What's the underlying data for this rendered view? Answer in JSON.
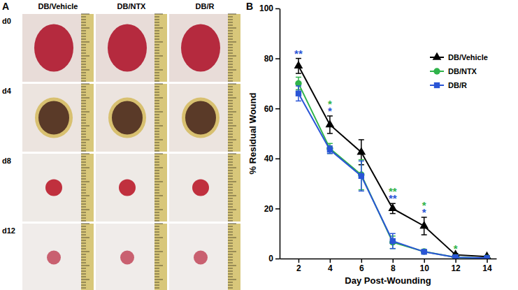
{
  "panel_a": {
    "label": "A",
    "columns": [
      "DB/Vehicle",
      "DB/NTX",
      "DB/R"
    ],
    "rows": [
      "d0",
      "d4",
      "d8",
      "d12"
    ]
  },
  "chart_data": {
    "type": "line",
    "panel_label": "B",
    "x_label": "Day Post-Wounding",
    "y_label": "% Residual Wound",
    "x": [
      2,
      4,
      6,
      8,
      10,
      12,
      14
    ],
    "xlim": [
      0.8,
      14.6
    ],
    "xticks": [
      2,
      4,
      6,
      8,
      10,
      12,
      14
    ],
    "ylim": [
      0,
      100
    ],
    "yticks": [
      0,
      20,
      40,
      60,
      80,
      100
    ],
    "legend": "upper right",
    "series": [
      {
        "name": "DB/Vehicle",
        "color": "#000000",
        "marker": "triangle",
        "line_style": "solid",
        "values": [
          77,
          53.5,
          42.5,
          20,
          13,
          1.5,
          0.8
        ],
        "errors": [
          3,
          3.5,
          5,
          2,
          3.5,
          0.5,
          0.3
        ]
      },
      {
        "name": "DB/NTX",
        "color": "#2fb34a",
        "marker": "circle",
        "line_style": "solid",
        "values": [
          70,
          44,
          33.5,
          6.5,
          2.8,
          0.5,
          0.2
        ],
        "errors": [
          2.5,
          2,
          6,
          2.5,
          0.5,
          0.3,
          0.1
        ]
      },
      {
        "name": "DB/R",
        "color": "#2a55d6",
        "marker": "square",
        "line_style": "solid",
        "values": [
          66,
          43.5,
          33,
          7,
          2.7,
          0.5,
          0.2
        ],
        "errors": [
          3,
          1.5,
          6,
          3,
          0.5,
          0.3,
          0.1
        ]
      }
    ],
    "annotations": [
      {
        "x": 2,
        "text": "**",
        "series": "DB/R"
      },
      {
        "x": 4,
        "text": "*",
        "series": "DB/NTX"
      },
      {
        "x": 4,
        "text": "*",
        "series": "DB/R"
      },
      {
        "x": 8,
        "text": "**",
        "series": "DB/NTX"
      },
      {
        "x": 8,
        "text": "**",
        "series": "DB/R"
      },
      {
        "x": 10,
        "text": "*",
        "series": "DB/NTX"
      },
      {
        "x": 10,
        "text": "*",
        "series": "DB/R"
      },
      {
        "x": 12,
        "text": "*",
        "series": "DB/NTX"
      }
    ]
  }
}
